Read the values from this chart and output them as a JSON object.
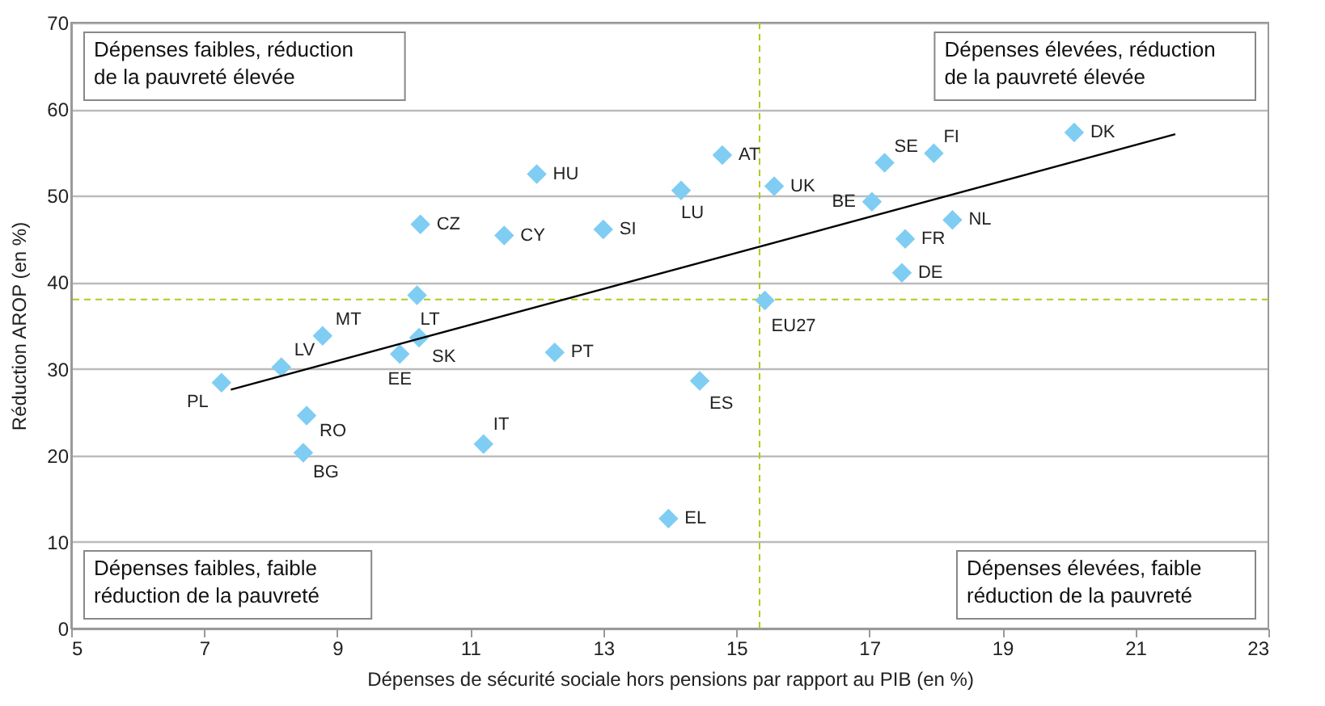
{
  "chart_data": {
    "type": "scatter",
    "xlabel": "Dépenses de sécurité sociale hors pensions par rapport au PIB (en %)",
    "ylabel": "Réduction AROP (en %)",
    "xlim": [
      5,
      23
    ],
    "xticks": [
      5,
      7,
      9,
      11,
      13,
      15,
      17,
      19,
      21,
      23
    ],
    "ylim": [
      0,
      70
    ],
    "yticks": [
      0,
      10,
      20,
      30,
      40,
      50,
      60,
      70
    ],
    "grid": "y",
    "series": [
      {
        "color": "#7fcdf2",
        "marker": "diamond",
        "x": [
          7.26,
          8.16,
          8.78,
          8.54,
          8.49,
          9.94,
          10.23,
          10.2,
          10.25,
          11.51,
          12.0,
          11.2,
          12.27,
          13.0,
          14.17,
          14.79,
          14.45,
          13.98,
          15.57,
          15.43,
          17.04,
          17.23,
          17.97,
          20.08,
          18.25,
          17.54,
          17.49
        ],
        "values": [
          28.4,
          30.2,
          33.8,
          24.6,
          20.3,
          31.7,
          33.6,
          38.5,
          46.7,
          45.4,
          52.5,
          21.3,
          31.9,
          46.1,
          50.6,
          54.7,
          28.6,
          12.7,
          51.1,
          37.9,
          49.3,
          53.8,
          54.9,
          57.3,
          47.2,
          45.0,
          41.1
        ],
        "value_labels": [
          "PL",
          "LV",
          "MT",
          "RO",
          "BG",
          "EE",
          "SK",
          "LT",
          "CZ",
          "CY",
          "HU",
          "IT",
          "PT",
          "SI",
          "LU",
          "AT",
          "ES",
          "EL",
          "UK",
          "EU27",
          "BE",
          "SE",
          "FI",
          "DK",
          "NL",
          "FR",
          "DE"
        ]
      },
      {
        "type": "line",
        "color": "#000000",
        "line_style": "solid",
        "marker": "none",
        "x": [
          7.4,
          21.6
        ],
        "values": [
          27.6,
          57.1
        ]
      }
    ],
    "ref_lines": [
      {
        "axis": "y",
        "value": 38,
        "color": "#b5c81e",
        "line_style": "dashed"
      },
      {
        "axis": "x",
        "value": 15.35,
        "color": "#b5c81e",
        "line_style": "dashed"
      }
    ],
    "annotations": [
      "Dépenses faibles, réduction\nde la pauvreté élevée",
      "Dépenses élevées, réduction\nde la pauvreté élevée",
      "Dépenses faibles, faible\nréduction de la pauvreté",
      "Dépenses élevées,  faible\nréduction de la pauvreté"
    ]
  }
}
